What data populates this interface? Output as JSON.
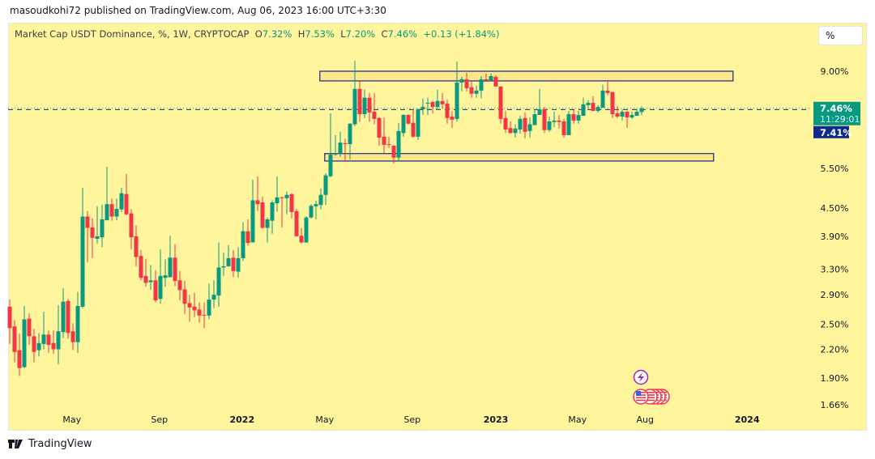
{
  "published": "masoudkohi72 published on TradingView.com, Aug 06, 2023 16:00 UTC+3:30",
  "legend": {
    "symbol": "Market Cap USDT Dominance, %, 1W, CRYPTOCAP",
    "o_label": "O",
    "o": "7.32%",
    "h_label": "H",
    "h": "7.53%",
    "l_label": "L",
    "l": "7.20%",
    "c_label": "C",
    "c": "7.46%",
    "change": "+0.13 (+1.84%)"
  },
  "scale_button": "%",
  "price_label": {
    "value": "7.46%",
    "countdown": "11:29:01",
    "color": "#089981"
  },
  "line_label": {
    "value": "7.41%",
    "color": "#0d2a8c"
  },
  "brand": "TradingView",
  "colors": {
    "up": "#089981",
    "down": "#f23645",
    "background": "#fff59d",
    "box_border": "#0d2a8c",
    "box_fill": "#ffe082"
  },
  "icons": [
    "lightning-event-icon",
    "us-flag-economic-event-icon"
  ],
  "chart_data": {
    "type": "candlestick",
    "title": "Market Cap USDT Dominance, %, 1W, CRYPTOCAP",
    "interval": "1W",
    "y_scale": "log",
    "ylim": [
      1.6,
      9.7
    ],
    "y_ticks": [
      "9.00%",
      "5.50%",
      "4.50%",
      "3.90%",
      "3.30%",
      "2.90%",
      "2.50%",
      "2.20%",
      "1.90%",
      "1.66%"
    ],
    "y_tick_values": [
      9.0,
      5.5,
      4.5,
      3.9,
      3.3,
      2.9,
      2.5,
      2.2,
      1.9,
      1.66
    ],
    "x_ticks": [
      {
        "label": "May",
        "week": 12.8,
        "bold": false
      },
      {
        "label": "Sep",
        "week": 30.8,
        "bold": false
      },
      {
        "label": "2022",
        "week": 47.8,
        "bold": true
      },
      {
        "label": "May",
        "week": 64.8,
        "bold": false
      },
      {
        "label": "Sep",
        "week": 82.8,
        "bold": false
      },
      {
        "label": "2023",
        "week": 100,
        "bold": true
      },
      {
        "label": "May",
        "week": 116.8,
        "bold": false
      },
      {
        "label": "Aug",
        "week": 130.7,
        "bold": false
      },
      {
        "label": "2024",
        "week": 151.7,
        "bold": true
      }
    ],
    "current_price": 7.46,
    "horizontal_line": 7.41,
    "boxes": [
      {
        "name": "resistance-zone",
        "from_week": 63.8,
        "to_week": 148.8,
        "top": 9.0,
        "bottom": 8.57
      },
      {
        "name": "support-zone",
        "from_week": 64.8,
        "to_week": 144.8,
        "top": 5.93,
        "bottom": 5.71
      }
    ],
    "ohlc_fields": [
      "open",
      "high",
      "low",
      "close"
    ],
    "candles": [
      [
        2.73,
        2.83,
        2.26,
        2.45
      ],
      [
        2.47,
        2.55,
        2.06,
        2.17
      ],
      [
        2.19,
        2.38,
        1.92,
        2.0
      ],
      [
        2.01,
        2.74,
        2.0,
        2.56
      ],
      [
        2.57,
        2.64,
        2.25,
        2.35
      ],
      [
        2.35,
        2.44,
        2.06,
        2.17
      ],
      [
        2.19,
        2.39,
        2.12,
        2.27
      ],
      [
        2.26,
        2.66,
        2.2,
        2.37
      ],
      [
        2.37,
        2.42,
        2.16,
        2.25
      ],
      [
        2.27,
        2.42,
        2.15,
        2.2
      ],
      [
        2.2,
        2.75,
        2.04,
        2.41
      ],
      [
        2.4,
        3.0,
        2.33,
        2.8
      ],
      [
        2.81,
        2.84,
        2.32,
        2.39
      ],
      [
        2.41,
        2.51,
        2.19,
        2.28
      ],
      [
        2.28,
        2.94,
        2.16,
        2.74
      ],
      [
        2.73,
        4.99,
        2.71,
        4.31
      ],
      [
        4.31,
        4.43,
        3.42,
        4.07
      ],
      [
        4.08,
        4.27,
        3.49,
        3.87
      ],
      [
        3.85,
        4.54,
        3.76,
        3.9
      ],
      [
        3.88,
        4.58,
        3.69,
        4.25
      ],
      [
        4.23,
        5.55,
        4.23,
        4.59
      ],
      [
        4.59,
        4.72,
        4.22,
        4.31
      ],
      [
        4.31,
        4.72,
        4.23,
        4.48
      ],
      [
        4.47,
        4.99,
        4.41,
        4.85
      ],
      [
        4.83,
        5.35,
        4.34,
        4.36
      ],
      [
        4.38,
        4.48,
        3.65,
        3.88
      ],
      [
        3.9,
        4.12,
        3.35,
        3.51
      ],
      [
        3.53,
        3.64,
        3.12,
        3.16
      ],
      [
        3.19,
        3.48,
        3.02,
        3.08
      ],
      [
        3.09,
        3.37,
        2.97,
        3.12
      ],
      [
        3.12,
        3.28,
        2.79,
        2.82
      ],
      [
        2.84,
        3.65,
        2.77,
        3.19
      ],
      [
        3.16,
        3.47,
        3.02,
        3.2
      ],
      [
        3.17,
        3.91,
        3.17,
        3.5
      ],
      [
        3.5,
        3.75,
        3.03,
        3.11
      ],
      [
        3.12,
        3.27,
        2.82,
        2.97
      ],
      [
        2.98,
        3.11,
        2.63,
        2.77
      ],
      [
        2.78,
        2.9,
        2.53,
        2.72
      ],
      [
        2.73,
        2.93,
        2.59,
        2.68
      ],
      [
        2.69,
        2.79,
        2.52,
        2.61
      ],
      [
        2.62,
        2.79,
        2.45,
        2.61
      ],
      [
        2.61,
        3.07,
        2.56,
        2.83
      ],
      [
        2.83,
        3.12,
        2.71,
        2.9
      ],
      [
        2.89,
        3.78,
        2.73,
        3.33
      ],
      [
        3.33,
        3.59,
        3.19,
        3.35
      ],
      [
        3.35,
        3.73,
        3.34,
        3.49
      ],
      [
        3.5,
        3.64,
        3.17,
        3.27
      ],
      [
        3.26,
        3.69,
        3.16,
        3.49
      ],
      [
        3.49,
        4.19,
        3.44,
        4.0
      ],
      [
        4.0,
        4.25,
        3.72,
        3.77
      ],
      [
        3.78,
        5.2,
        3.78,
        4.68
      ],
      [
        4.68,
        5.28,
        4.43,
        4.59
      ],
      [
        4.63,
        4.77,
        4.05,
        4.07
      ],
      [
        4.07,
        4.29,
        3.78,
        4.25
      ],
      [
        4.22,
        4.68,
        3.95,
        4.63
      ],
      [
        4.61,
        5.28,
        4.42,
        4.75
      ],
      [
        4.75,
        4.77,
        4.08,
        4.73
      ],
      [
        4.73,
        4.89,
        4.36,
        4.81
      ],
      [
        4.83,
        4.85,
        4.27,
        4.41
      ],
      [
        4.43,
        4.48,
        3.9,
        3.9
      ],
      [
        3.91,
        4.07,
        3.76,
        3.78
      ],
      [
        3.78,
        4.32,
        3.77,
        4.29
      ],
      [
        4.29,
        4.59,
        4.27,
        4.55
      ],
      [
        4.54,
        4.67,
        4.25,
        4.59
      ],
      [
        4.57,
        4.97,
        4.47,
        4.81
      ],
      [
        4.81,
        5.37,
        4.57,
        5.31
      ],
      [
        5.29,
        7.27,
        5.26,
        5.9
      ],
      [
        5.9,
        6.51,
        5.86,
        5.93
      ],
      [
        5.93,
        6.62,
        5.83,
        6.27
      ],
      [
        6.25,
        6.4,
        5.71,
        6.24
      ],
      [
        6.22,
        6.93,
        5.76,
        6.9
      ],
      [
        6.88,
        9.49,
        6.81,
        8.23
      ],
      [
        8.23,
        8.57,
        6.96,
        7.24
      ],
      [
        7.24,
        8.2,
        7.1,
        7.87
      ],
      [
        7.87,
        8.06,
        6.96,
        7.3
      ],
      [
        7.33,
        8.06,
        6.88,
        7.07
      ],
      [
        7.1,
        7.12,
        6.17,
        6.43
      ],
      [
        6.46,
        7.12,
        5.95,
        6.2
      ],
      [
        6.22,
        6.46,
        6.1,
        6.2
      ],
      [
        6.17,
        6.2,
        5.64,
        5.81
      ],
      [
        5.81,
        6.93,
        5.69,
        6.65
      ],
      [
        6.58,
        7.24,
        6.46,
        7.21
      ],
      [
        7.21,
        7.24,
        6.88,
        6.9
      ],
      [
        6.93,
        7.42,
        6.43,
        6.46
      ],
      [
        6.46,
        7.45,
        6.35,
        7.42
      ],
      [
        7.42,
        7.84,
        7.21,
        7.51
      ],
      [
        7.64,
        7.87,
        7.21,
        7.67
      ],
      [
        7.7,
        7.74,
        7.27,
        7.51
      ],
      [
        7.51,
        8.2,
        7.39,
        7.74
      ],
      [
        7.74,
        8.06,
        7.45,
        7.61
      ],
      [
        7.64,
        7.8,
        6.9,
        7.1
      ],
      [
        7.15,
        7.36,
        6.75,
        7.04
      ],
      [
        7.07,
        9.45,
        6.98,
        8.5
      ],
      [
        8.5,
        8.75,
        8.13,
        8.64
      ],
      [
        8.64,
        8.93,
        8.13,
        8.26
      ],
      [
        8.3,
        8.57,
        7.87,
        8.03
      ],
      [
        8.03,
        8.37,
        7.87,
        8.16
      ],
      [
        8.16,
        8.78,
        7.84,
        8.64
      ],
      [
        8.64,
        8.89,
        8.53,
        8.6
      ],
      [
        8.6,
        8.89,
        8.57,
        8.78
      ],
      [
        8.75,
        8.82,
        8.33,
        8.33
      ],
      [
        8.33,
        8.33,
        6.9,
        7.07
      ],
      [
        7.1,
        7.36,
        6.58,
        6.7
      ],
      [
        6.75,
        6.98,
        6.56,
        6.58
      ],
      [
        6.58,
        6.88,
        6.43,
        6.73
      ],
      [
        6.7,
        7.18,
        6.56,
        7.07
      ],
      [
        7.1,
        7.3,
        6.4,
        6.62
      ],
      [
        6.65,
        7.12,
        6.43,
        6.88
      ],
      [
        6.85,
        7.39,
        6.85,
        7.24
      ],
      [
        7.21,
        8.23,
        7.21,
        7.42
      ],
      [
        7.42,
        7.51,
        6.58,
        6.68
      ],
      [
        6.68,
        7.15,
        6.62,
        6.98
      ],
      [
        6.96,
        7.33,
        6.78,
        7.01
      ],
      [
        7.01,
        7.21,
        6.73,
        6.96
      ],
      [
        6.98,
        7.07,
        6.43,
        6.51
      ],
      [
        6.51,
        7.36,
        6.51,
        7.24
      ],
      [
        7.24,
        7.39,
        6.9,
        7.01
      ],
      [
        7.01,
        7.36,
        6.9,
        7.21
      ],
      [
        7.18,
        7.87,
        7.18,
        7.61
      ],
      [
        7.58,
        7.77,
        7.45,
        7.67
      ],
      [
        7.67,
        7.93,
        7.36,
        7.36
      ],
      [
        7.36,
        7.58,
        7.3,
        7.51
      ],
      [
        7.48,
        8.4,
        7.48,
        8.16
      ],
      [
        8.16,
        8.53,
        7.97,
        8.06
      ],
      [
        8.1,
        8.1,
        7.1,
        7.24
      ],
      [
        7.27,
        7.54,
        7.1,
        7.15
      ],
      [
        7.15,
        7.42,
        7.01,
        7.33
      ],
      [
        7.33,
        7.36,
        6.75,
        7.12
      ],
      [
        7.12,
        7.33,
        7.07,
        7.21
      ],
      [
        7.18,
        7.42,
        7.18,
        7.33
      ],
      [
        7.32,
        7.53,
        7.2,
        7.46
      ]
    ]
  }
}
